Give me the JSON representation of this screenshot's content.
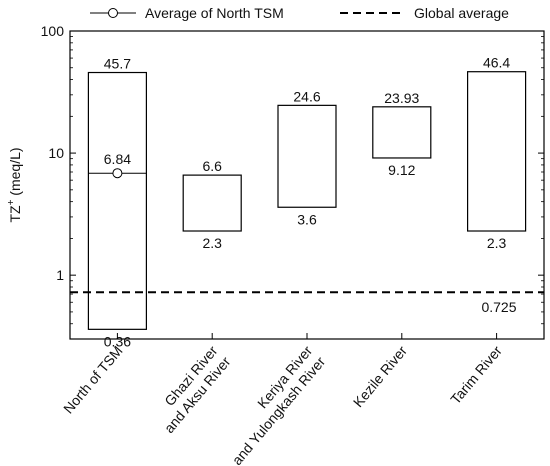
{
  "chart_data": {
    "type": "range-bar",
    "ylabel_parts": [
      "TZ",
      "+",
      " (meq/L)"
    ],
    "yscale": "log",
    "ylim": [
      0.3,
      100
    ],
    "yticks": [
      {
        "value": 1,
        "label": "1"
      },
      {
        "value": 10,
        "label": "10"
      },
      {
        "value": 100,
        "label": "100"
      }
    ],
    "categories": [
      {
        "lines": [
          "North of TSM"
        ]
      },
      {
        "lines": [
          "Ghazi River",
          "and Aksu River"
        ]
      },
      {
        "lines": [
          "Keriya River",
          "and Yulongkash River"
        ]
      },
      {
        "lines": [
          "Kezile River"
        ]
      },
      {
        "lines": [
          "Tarim River"
        ]
      }
    ],
    "ranges": [
      {
        "min": 0.36,
        "max": 45.7,
        "min_label": "0.36",
        "max_label": "45.7"
      },
      {
        "min": 2.3,
        "max": 6.6,
        "min_label": "2.3",
        "max_label": "6.6"
      },
      {
        "min": 3.6,
        "max": 24.6,
        "min_label": "3.6",
        "max_label": "24.6"
      },
      {
        "min": 9.12,
        "max": 23.93,
        "min_label": "9.12",
        "max_label": "23.93"
      },
      {
        "min": 2.3,
        "max": 46.4,
        "min_label": "2.3",
        "max_label": "46.4"
      }
    ],
    "average_marker": {
      "category_index": 0,
      "value": 6.84,
      "label": "6.84"
    },
    "reference_line": {
      "value": 0.725,
      "label": "0.725"
    },
    "legend": {
      "placement": "top",
      "entries": [
        {
          "symbol": "circle-line",
          "label": "Average of North TSM"
        },
        {
          "symbol": "dashed-line",
          "label": "Global average"
        }
      ]
    },
    "grid": false
  }
}
